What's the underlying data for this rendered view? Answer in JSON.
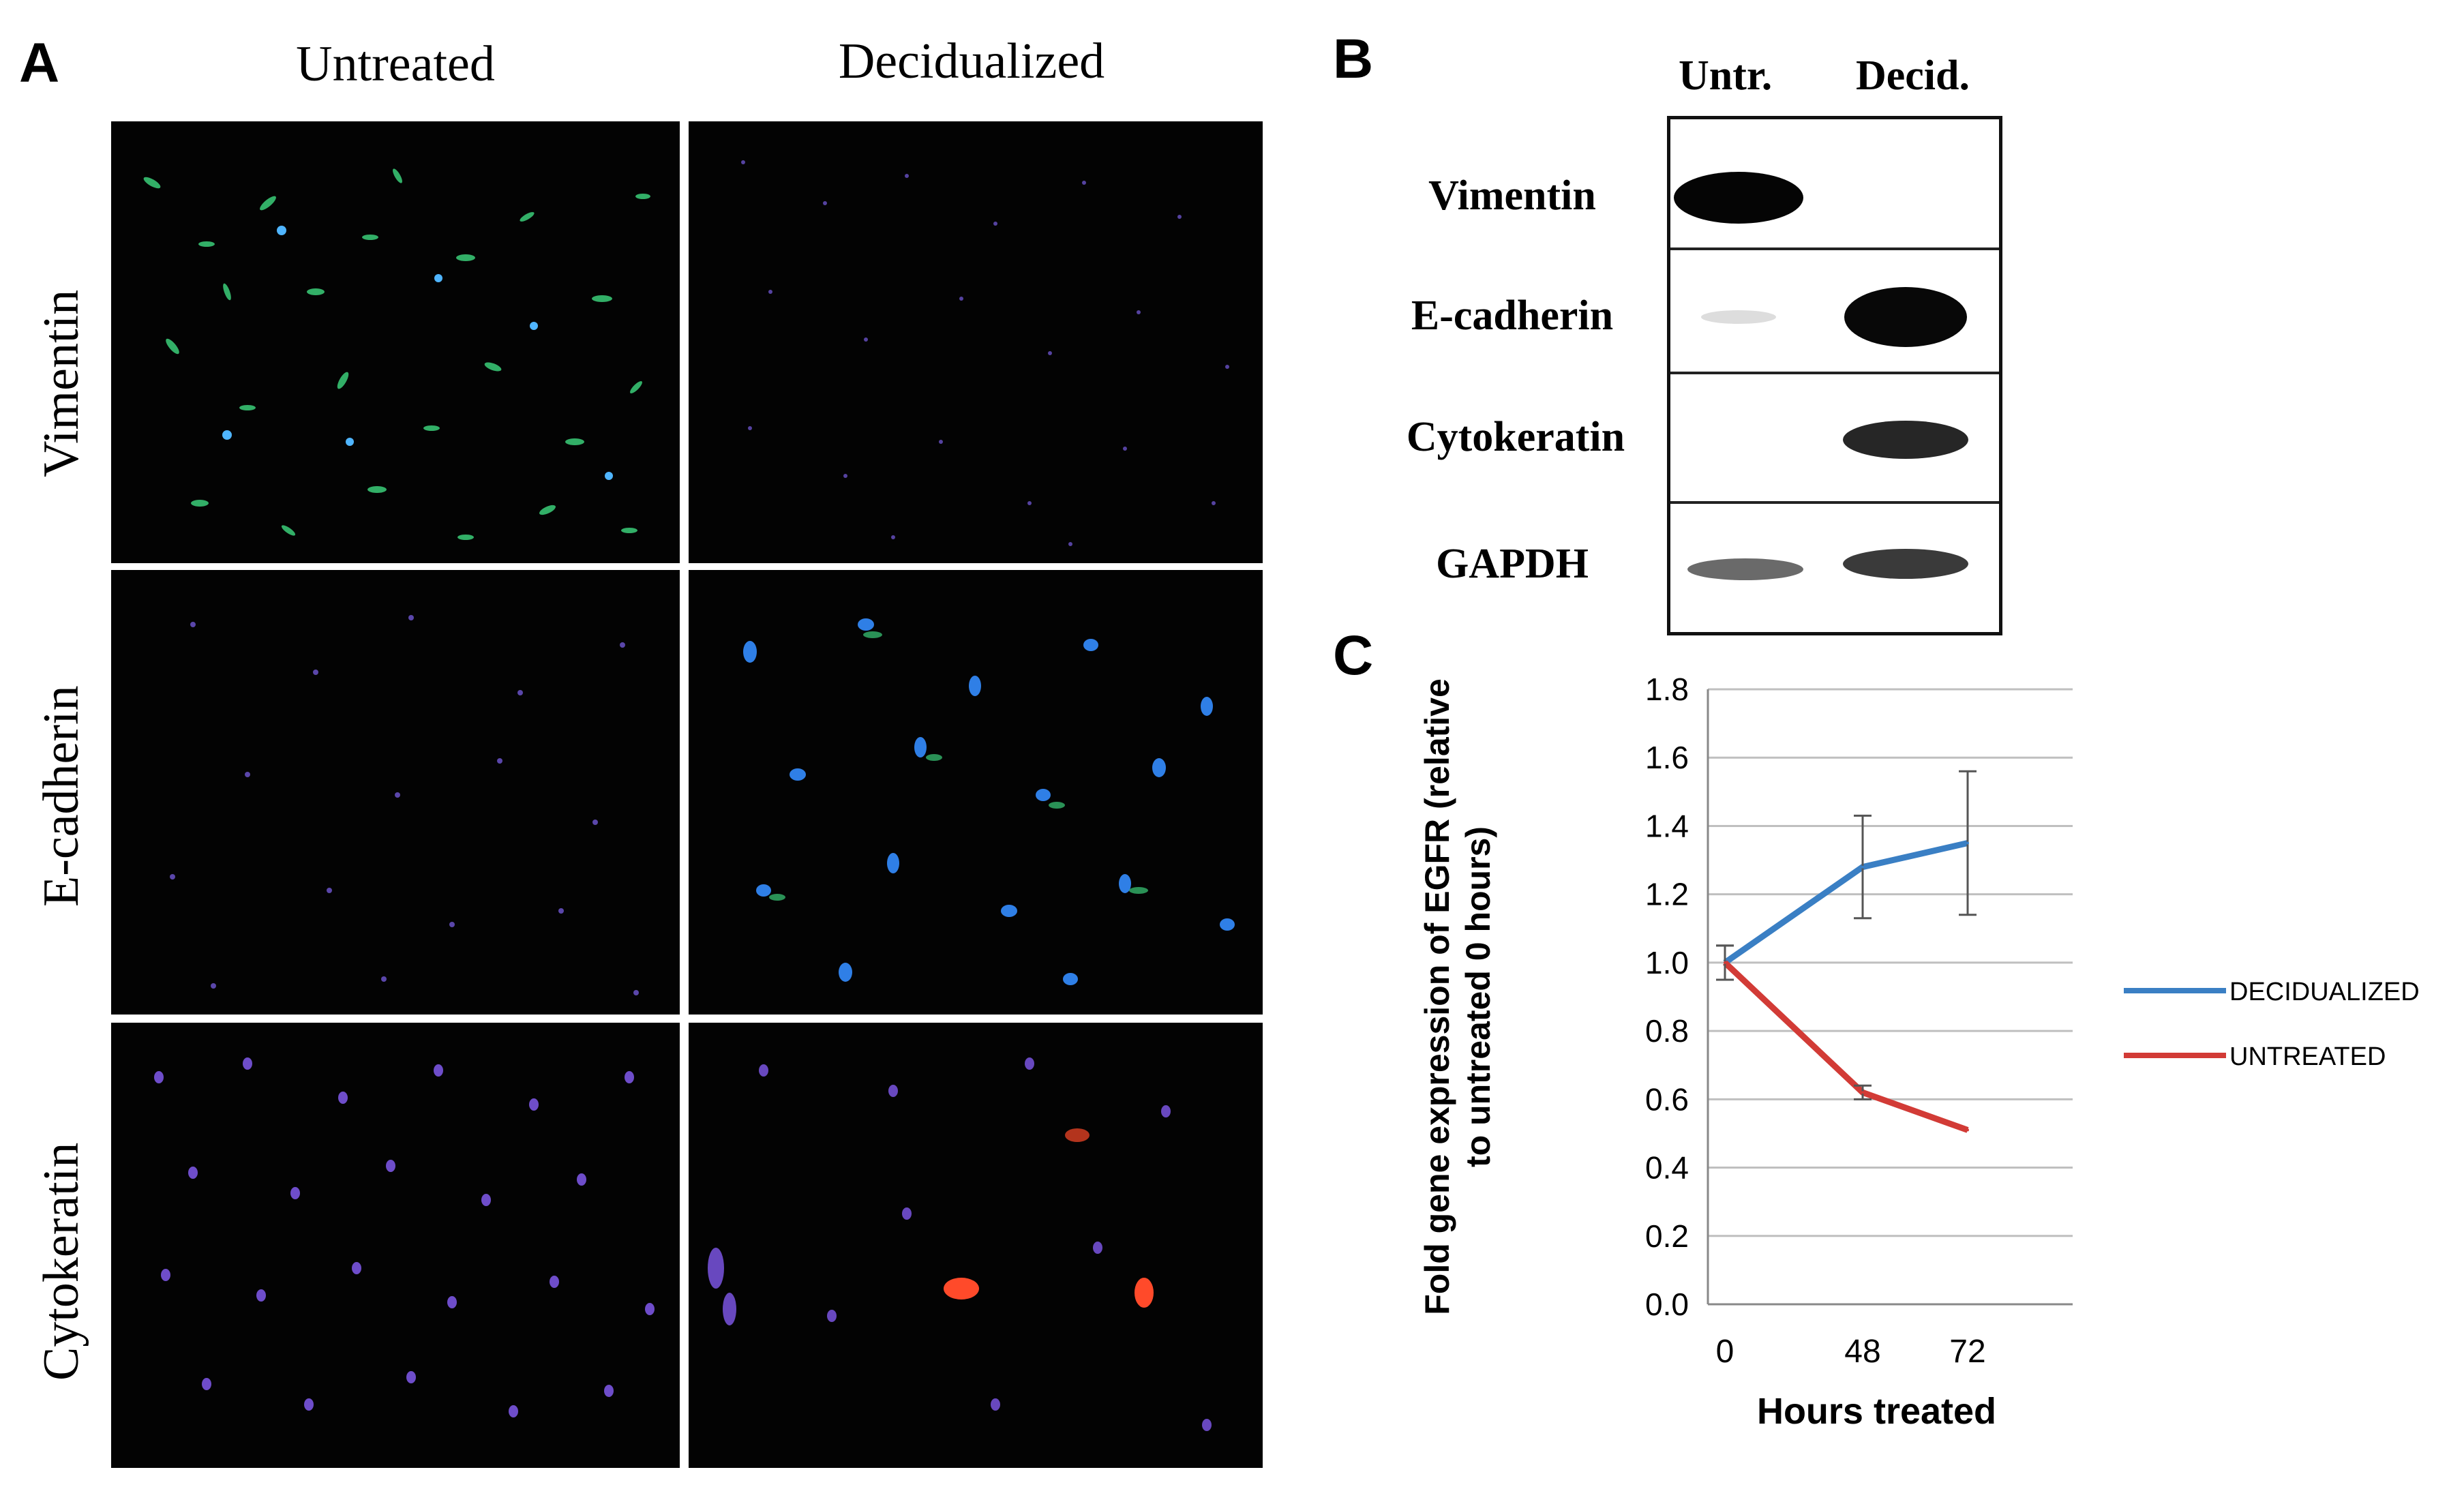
{
  "panels": {
    "A": "A",
    "B": "B",
    "C": "C"
  },
  "panel_a": {
    "columns": [
      "Untreated",
      "Decidualized"
    ],
    "rows": [
      "Vimentin",
      "E-cadherin",
      "Cytokeratin"
    ]
  },
  "panel_b": {
    "lanes": [
      "Untr.",
      "Decid."
    ],
    "proteins": [
      "Vimentin",
      "E-cadherin",
      "Cytokeratin",
      "GAPDH"
    ]
  },
  "colors": {
    "decidualized": "#3a7fc4",
    "untreated": "#d23b36",
    "grid": "#bfbfbf",
    "axis": "#888888"
  },
  "chart_data": {
    "type": "line",
    "xlabel": "Hours treated",
    "ylabel": "Fold gene expression of EGFR (relative to untreated 0 hours)",
    "ylabel_lines": [
      "Fold gene expression of EGFR (relative",
      "to untreated 0 hours)"
    ],
    "x": [
      0,
      48,
      72
    ],
    "x_tick_labels": [
      "0",
      "48",
      "72"
    ],
    "y_tick_labels": [
      "0.0",
      "0.2",
      "0.4",
      "0.6",
      "0.8",
      "1.0",
      "1.2",
      "1.4",
      "1.6",
      "1.8"
    ],
    "ylim": [
      0,
      1.8
    ],
    "grid": true,
    "legend_position": "right",
    "series": [
      {
        "name": "DECIDUALIZED",
        "color": "#3a7fc4",
        "values": [
          1.0,
          1.28,
          1.35
        ],
        "error": [
          0.05,
          0.15,
          0.21
        ]
      },
      {
        "name": "UNTREATED",
        "color": "#d23b36",
        "values": [
          1.0,
          0.62,
          0.51
        ],
        "error": [
          0.05,
          0.02,
          0.0
        ]
      }
    ]
  }
}
